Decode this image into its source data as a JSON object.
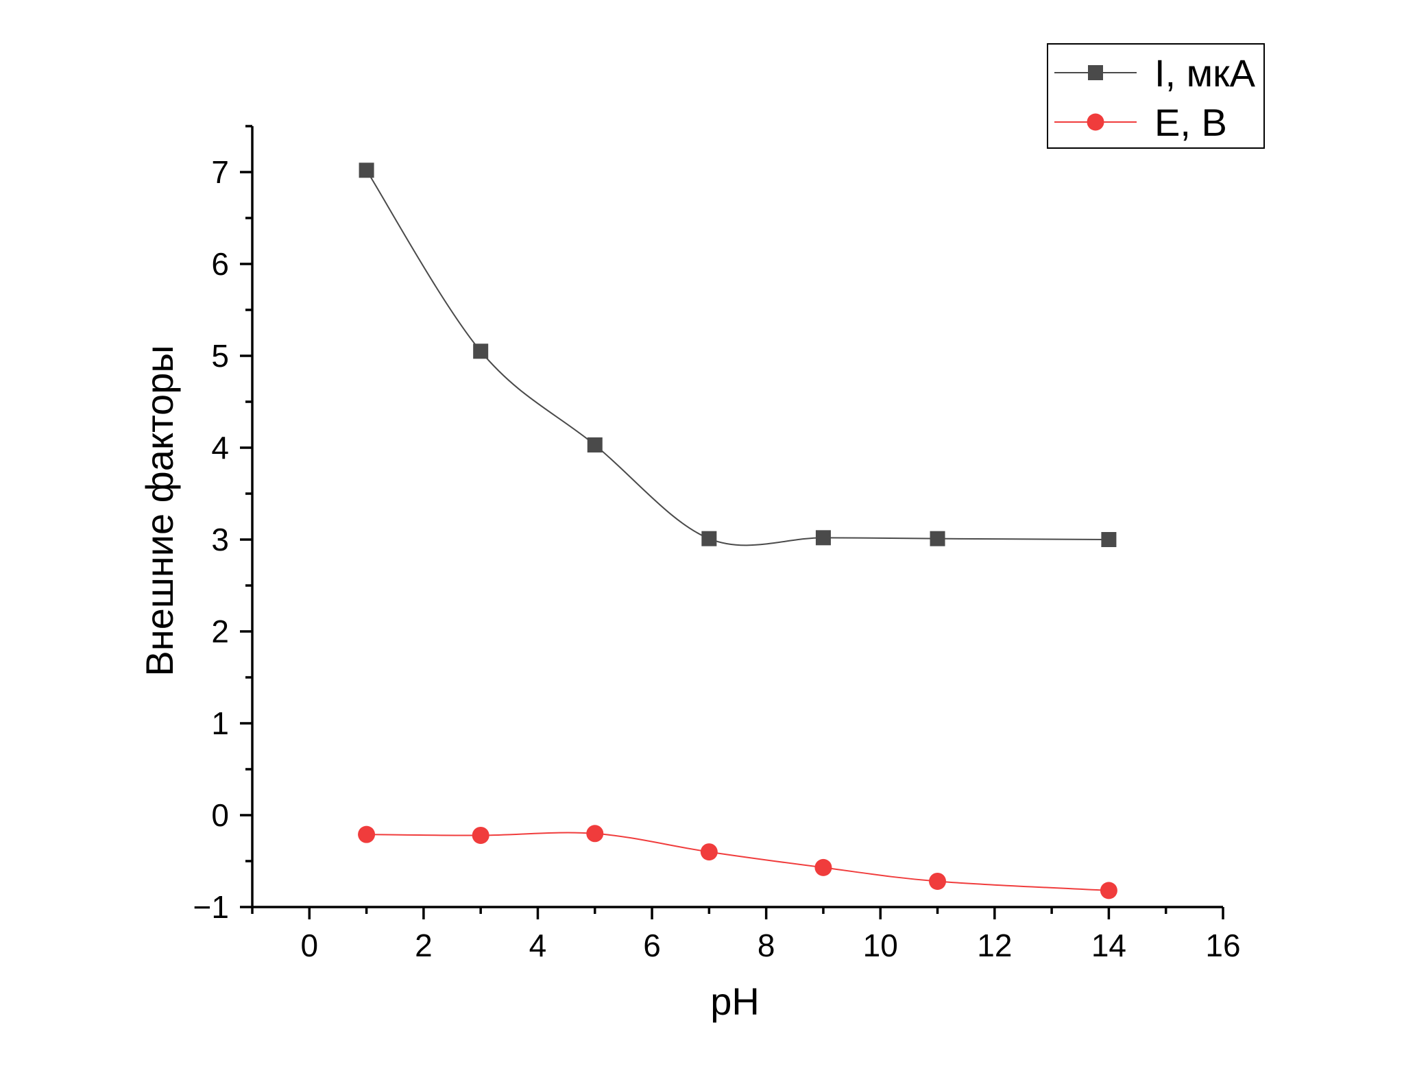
{
  "chart_data": {
    "type": "line",
    "xlabel": "pH",
    "ylabel": "Внешние факторы",
    "xlim": [
      -1,
      16
    ],
    "ylim": [
      -1,
      7.5
    ],
    "x_ticks": [
      "0",
      "2",
      "4",
      "6",
      "8",
      "10",
      "12",
      "14",
      "16"
    ],
    "y_ticks": [
      "−1",
      "0",
      "1",
      "2",
      "3",
      "4",
      "5",
      "6",
      "7"
    ],
    "smoothed": true,
    "grid": false,
    "legend_position": "top-right",
    "series": [
      {
        "name": "I, мкА",
        "color": "#4a4a4a",
        "marker": "square",
        "x": [
          1,
          3,
          5,
          7,
          9,
          11,
          14
        ],
        "y": [
          7.02,
          5.05,
          4.03,
          3.01,
          3.02,
          3.01,
          3.0
        ]
      },
      {
        "name": "E, В",
        "color": "#f03c3c",
        "marker": "circle",
        "x": [
          1,
          3,
          5,
          7,
          9,
          11,
          14
        ],
        "y": [
          -0.21,
          -0.22,
          -0.2,
          -0.4,
          -0.57,
          -0.72,
          -0.82
        ]
      }
    ]
  }
}
